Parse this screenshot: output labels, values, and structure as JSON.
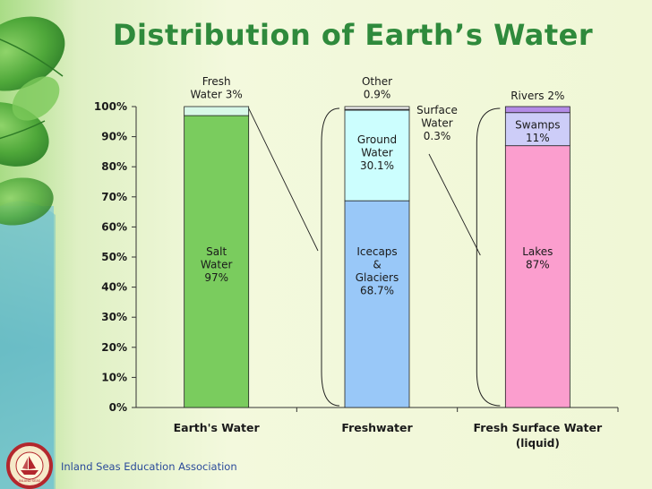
{
  "slide": {
    "title": "Distribution of Earth’s Water",
    "organization": "Inland Seas Education Association",
    "logo_text": "INLAND SEAS",
    "colors": {
      "title": "#2f8a3c",
      "organization": "#2a4a9a",
      "background_light": "#f2f8da",
      "background_leaf": "#5eb53f"
    }
  },
  "chart_data": {
    "type": "bar",
    "stacked": true,
    "title": "",
    "xlabel": "",
    "ylabel": "",
    "ylim": [
      0,
      100
    ],
    "yticks": [
      "0%",
      "10%",
      "20%",
      "30%",
      "40%",
      "50%",
      "60%",
      "70%",
      "80%",
      "90%",
      "100%"
    ],
    "categories": [
      "Earth's Water",
      "Freshwater",
      "Fresh Surface Water"
    ],
    "category_sublabels": [
      "",
      "",
      "(liquid)"
    ],
    "grid": false,
    "legend": "none",
    "bars": [
      {
        "segments": [
          {
            "name": "Salt Water",
            "value": 97,
            "label": [
              "Salt",
              "Water",
              "97%"
            ],
            "color": "#7acc5e",
            "label_pos": "inside"
          },
          {
            "name": "Fresh Water",
            "value": 3,
            "label": [
              "Fresh",
              "Water 3%"
            ],
            "color": "#d8f8e8",
            "label_pos": "above"
          }
        ]
      },
      {
        "segments": [
          {
            "name": "Icecaps & Glaciers",
            "value": 68.7,
            "label": [
              "Icecaps",
              "&",
              "Glaciers",
              "68.7%"
            ],
            "color": "#99c8f8",
            "label_pos": "inside"
          },
          {
            "name": "Ground Water",
            "value": 30.1,
            "label": [
              "Ground",
              "Water",
              "30.1%"
            ],
            "color": "#ccfefe",
            "label_pos": "inside"
          },
          {
            "name": "Surface Water",
            "value": 0.3,
            "label": [
              "Surface",
              "Water",
              "0.3%"
            ],
            "color": "#e8e0f0",
            "label_pos": "right"
          },
          {
            "name": "Other",
            "value": 0.9,
            "label": [
              "Other",
              "0.9%"
            ],
            "color": "#ffffff",
            "label_pos": "above"
          }
        ]
      },
      {
        "segments": [
          {
            "name": "Lakes",
            "value": 87,
            "label": [
              "Lakes",
              "87%"
            ],
            "color": "#fb9ece",
            "label_pos": "inside"
          },
          {
            "name": "Swamps",
            "value": 11,
            "label": [
              "Swamps",
              "11%"
            ],
            "color": "#cdcdf8",
            "label_pos": "inside"
          },
          {
            "name": "Rivers",
            "value": 2,
            "label": [
              "Rivers 2%"
            ],
            "color": "#b48ce6",
            "label_pos": "above"
          }
        ]
      }
    ]
  }
}
